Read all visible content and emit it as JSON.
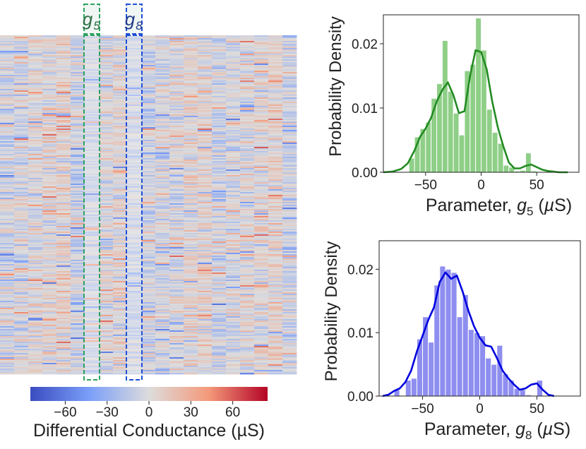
{
  "chart_data": [
    {
      "type": "heatmap",
      "description_labels": {
        "highlight_1": "g5",
        "highlight_2": "g8"
      },
      "highlight_columns": [
        {
          "name": "g",
          "sub": "5",
          "column_index": 6,
          "color": "#2ca25f"
        },
        {
          "name": "g",
          "sub": "8",
          "column_index": 9,
          "color": "#1f4fd6"
        }
      ],
      "columns": 21,
      "rows": 240,
      "colorbar": {
        "label": "Differential Conductance (µS)",
        "ticks": [
          "−60",
          "−30",
          "0",
          "30",
          "60"
        ],
        "tick_values": [
          -60,
          -30,
          0,
          30,
          60
        ],
        "range": [
          -85,
          85
        ],
        "colormap": "coolwarm"
      }
    },
    {
      "type": "histogram",
      "title": "",
      "xlabel_prefix": "Parameter, ",
      "xlabel_var": "g",
      "xlabel_sub": "5",
      "xlabel_suffix": " (",
      "xlabel_mu": "µ",
      "xlabel_unit": "S)",
      "ylabel": "Probability Density",
      "xlim": [
        -88,
        88
      ],
      "ylim": [
        0,
        0.0245
      ],
      "xticks": [
        -50,
        0,
        50
      ],
      "xtick_labels": [
        "−50",
        "0",
        "50"
      ],
      "yticks": [
        0.0,
        0.01,
        0.02
      ],
      "ytick_labels": [
        "0.00",
        "0.01",
        "0.02"
      ],
      "bar_color": "#8fcf87",
      "line_color": "#238b23",
      "bin_edges": [
        -65,
        -60,
        -55,
        -50,
        -45,
        -40,
        -35,
        -30,
        -25,
        -20,
        -15,
        -10,
        -5,
        0,
        5,
        10,
        15,
        20,
        25,
        30,
        35,
        40,
        45,
        50
      ],
      "bar_values": [
        0.0022,
        0.0055,
        0.0068,
        0.0078,
        0.0115,
        0.0138,
        0.0205,
        0.0126,
        0.0092,
        0.0058,
        0.0158,
        0.0168,
        0.024,
        0.019,
        0.0098,
        0.0062,
        0.0045,
        0.0011,
        0.0008,
        0.0002,
        0.0003,
        0.003,
        0.0002
      ],
      "kde_x": [
        -88,
        -80,
        -72,
        -66,
        -60,
        -55,
        -50,
        -45,
        -40,
        -35,
        -30,
        -25,
        -20,
        -15,
        -10,
        -5,
        0,
        5,
        10,
        15,
        20,
        25,
        30,
        35,
        40,
        45,
        50,
        55,
        60,
        65,
        70,
        78
      ],
      "kde_y": [
        0.0,
        0.0001,
        0.0005,
        0.0014,
        0.0034,
        0.0055,
        0.0068,
        0.0085,
        0.011,
        0.0128,
        0.014,
        0.012,
        0.0092,
        0.0095,
        0.015,
        0.019,
        0.0187,
        0.016,
        0.011,
        0.007,
        0.004,
        0.0015,
        0.0006,
        0.0006,
        0.001,
        0.0012,
        0.0008,
        0.0004,
        0.0002,
        0.0001,
        0.0,
        0.0
      ]
    },
    {
      "type": "histogram",
      "title": "",
      "xlabel_prefix": "Parameter, ",
      "xlabel_var": "g",
      "xlabel_sub": "8",
      "xlabel_suffix": " (",
      "xlabel_mu": "µ",
      "xlabel_unit": "S)",
      "ylabel": "Probability Density",
      "xlim": [
        -88,
        88
      ],
      "ylim": [
        0,
        0.0245
      ],
      "xticks": [
        -50,
        0,
        50
      ],
      "xtick_labels": [
        "−50",
        "0",
        "50"
      ],
      "yticks": [
        0.0,
        0.01,
        0.02
      ],
      "ytick_labels": [
        "0.00",
        "0.01",
        "0.02"
      ],
      "bar_color": "#8e8ef0",
      "line_color": "#0000e0",
      "bin_edges": [
        -75,
        -70,
        -65,
        -60,
        -55,
        -50,
        -45,
        -40,
        -35,
        -30,
        -25,
        -20,
        -15,
        -10,
        -5,
        0,
        5,
        10,
        15,
        20,
        25,
        30,
        35,
        40,
        45,
        50,
        55
      ],
      "bar_values": [
        0.001,
        0.0,
        0.0025,
        0.0028,
        0.009,
        0.0125,
        0.0085,
        0.0175,
        0.0205,
        0.02,
        0.0195,
        0.0125,
        0.016,
        0.0105,
        0.01,
        0.0095,
        0.006,
        0.005,
        0.008,
        0.0035,
        0.0025,
        0.0012,
        0.001,
        0.0002,
        0.0,
        0.0025
      ],
      "kde_x": [
        -85,
        -80,
        -75,
        -70,
        -65,
        -60,
        -55,
        -50,
        -45,
        -40,
        -35,
        -30,
        -25,
        -20,
        -15,
        -10,
        -5,
        0,
        5,
        10,
        15,
        20,
        25,
        30,
        35,
        40,
        45,
        50,
        55,
        60,
        65
      ],
      "kde_y": [
        0.0,
        0.0002,
        0.0008,
        0.0012,
        0.0022,
        0.004,
        0.007,
        0.0095,
        0.012,
        0.014,
        0.018,
        0.0195,
        0.0185,
        0.019,
        0.0165,
        0.0135,
        0.011,
        0.0092,
        0.008,
        0.0078,
        0.006,
        0.004,
        0.0028,
        0.0018,
        0.001,
        0.0012,
        0.0018,
        0.002,
        0.001,
        0.0002,
        0.0
      ]
    }
  ]
}
